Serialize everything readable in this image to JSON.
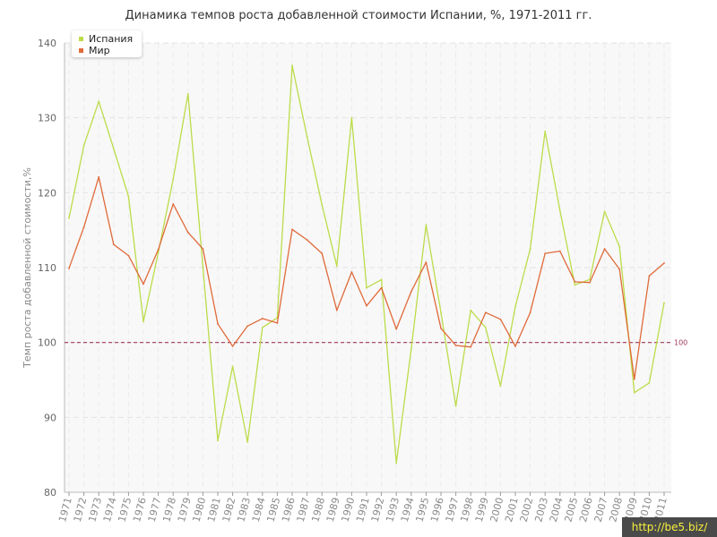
{
  "chart_data": {
    "type": "line",
    "title": "Динамика темпов роста добавленной стоимости Испании, %, 1971-2011 гг.",
    "xlabel": "",
    "ylabel": "Темп роста добавленной стоимости,%",
    "ylim": [
      80,
      140
    ],
    "yticks": [
      80,
      90,
      100,
      110,
      120,
      130,
      140
    ],
    "grid": true,
    "legend_position": "top-left",
    "x": [
      "1971",
      "1972",
      "1973",
      "1974",
      "1975",
      "1976",
      "1977",
      "1978",
      "1979",
      "1980",
      "1981",
      "1982",
      "1983",
      "1984",
      "1985",
      "1986",
      "1987",
      "1988",
      "1989",
      "1990",
      "1991",
      "1992",
      "1993",
      "1994",
      "1995",
      "1996",
      "1997",
      "1998",
      "1999",
      "2000",
      "2001",
      "2002",
      "2003",
      "2004",
      "2005",
      "2006",
      "2007",
      "2008",
      "2009",
      "2010",
      "2011"
    ],
    "series": [
      {
        "name": "Испания",
        "color": "#bcdc4a",
        "values": [
          116.6,
          126.3,
          132.2,
          125.9,
          119.5,
          102.8,
          112.0,
          121.8,
          133.2,
          110.1,
          86.9,
          96.8,
          86.7,
          102.0,
          103.3,
          137.0,
          127.5,
          118.4,
          110.2,
          130.0,
          107.3,
          108.4,
          83.9,
          99.1,
          115.7,
          104.0,
          91.5,
          104.3,
          102.0,
          94.2,
          104.8,
          112.5,
          128.2,
          117.6,
          107.7,
          108.4,
          117.5,
          112.8,
          93.3,
          94.6,
          105.3
        ]
      },
      {
        "name": "Мир",
        "color": "#e06a3a",
        "values": [
          109.9,
          115.4,
          122.1,
          113.1,
          111.6,
          107.8,
          112.4,
          118.5,
          114.7,
          112.5,
          102.5,
          99.5,
          102.2,
          103.2,
          102.6,
          115.1,
          113.7,
          111.9,
          104.3,
          109.4,
          104.9,
          107.3,
          101.8,
          106.8,
          110.7,
          101.9,
          99.6,
          99.4,
          104.0,
          103.1,
          99.5,
          104.0,
          111.9,
          112.2,
          108.1,
          108.0,
          112.5,
          109.8,
          95.1,
          108.9,
          110.6
        ]
      }
    ],
    "reference_line": {
      "value": 100,
      "label": "100",
      "color": "#a03a5a"
    }
  },
  "watermark": "http://be5.biz/"
}
